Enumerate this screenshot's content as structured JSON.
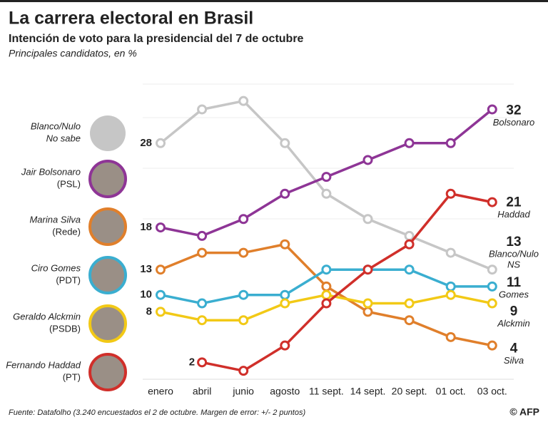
{
  "header": {
    "title": "La carrera electoral en Brasil",
    "subtitle": "Intención de voto para la presidencial del 7 de octubre",
    "note": "Principales candidatos, en %"
  },
  "chart_data": {
    "type": "line",
    "categories": [
      "enero",
      "abril",
      "junio",
      "agosto",
      "11 sept.",
      "14 sept.",
      "20 sept.",
      "01 oct.",
      "03 oct."
    ],
    "ylim": [
      0,
      35
    ],
    "series": [
      {
        "name": "Blanco/Nulo",
        "party": "No sabe",
        "end_label": [
          "Blanco/Nulo",
          "NS"
        ],
        "color": "#c6c6c6",
        "values": [
          28,
          32,
          33,
          28,
          22,
          19,
          17,
          15,
          13
        ]
      },
      {
        "name": "Jair Bolsonaro",
        "party": "(PSL)",
        "end_label": [
          "Bolsonaro"
        ],
        "color": "#8e3596",
        "values": [
          18,
          17,
          19,
          22,
          24,
          26,
          28,
          28,
          32
        ]
      },
      {
        "name": "Marina Silva",
        "party": "(Rede)",
        "end_label": [
          "Silva"
        ],
        "color": "#e07f2b",
        "values": [
          13,
          15,
          15,
          16,
          11,
          8,
          7,
          5,
          4
        ]
      },
      {
        "name": "Ciro Gomes",
        "party": "(PDT)",
        "end_label": [
          "Gomes"
        ],
        "color": "#3aaed0",
        "values": [
          10,
          9,
          10,
          10,
          13,
          13,
          13,
          11,
          11
        ]
      },
      {
        "name": "Geraldo Alckmin",
        "party": "(PSDB)",
        "end_label": [
          "Alckmin"
        ],
        "color": "#f2c916",
        "values": [
          8,
          7,
          7,
          9,
          10,
          9,
          9,
          10,
          9
        ]
      },
      {
        "name": "Fernando Haddad",
        "party": "(PT)",
        "end_label": [
          "Haddad"
        ],
        "color": "#d02f2a",
        "values": [
          null,
          2,
          1,
          4,
          9,
          13,
          16,
          22,
          21
        ]
      }
    ]
  },
  "footer": {
    "source": "Fuente: Datafolho (3.240 encuestados el 2 de octubre. Margen de error: +/- 2 puntos)",
    "credit": "© AFP"
  }
}
